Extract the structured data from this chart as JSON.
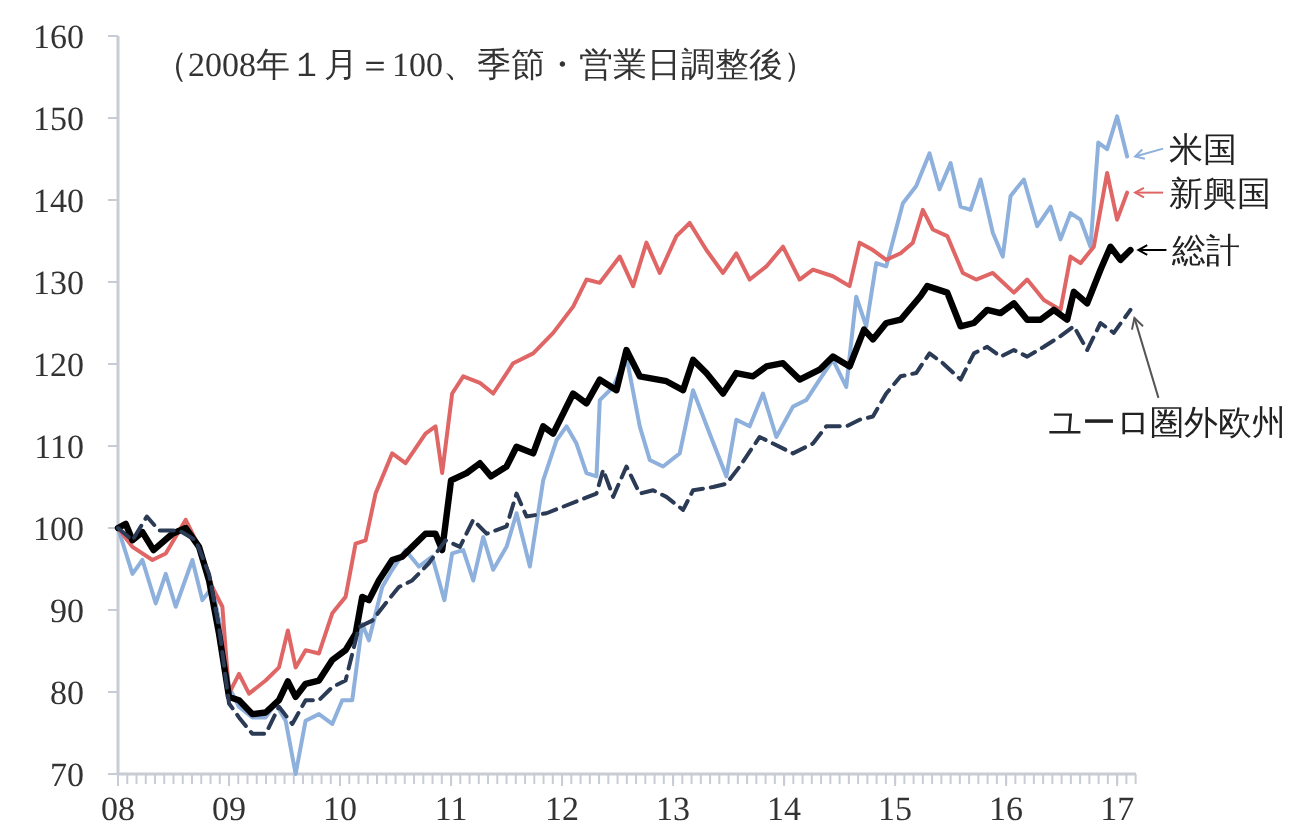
{
  "chart_data": {
    "type": "line",
    "annotations": [
      "（2008年１月＝100、季節・営業日調整後）"
    ],
    "xlim": [
      2008,
      2017.17
    ],
    "xticks": [
      {
        "value": 2008,
        "label": "08"
      },
      {
        "value": 2009,
        "label": "09"
      },
      {
        "value": 2010,
        "label": "10"
      },
      {
        "value": 2011,
        "label": "11"
      },
      {
        "value": 2012,
        "label": "12"
      },
      {
        "value": 2013,
        "label": "13"
      },
      {
        "value": 2014,
        "label": "14"
      },
      {
        "value": 2015,
        "label": "15"
      },
      {
        "value": 2016,
        "label": "16"
      },
      {
        "value": 2017,
        "label": "17"
      }
    ],
    "legend": "right",
    "ylim": [
      70,
      160
    ],
    "yticks": [
      70,
      80,
      90,
      100,
      110,
      120,
      130,
      140,
      150,
      160
    ],
    "series": [
      {
        "name": "米国",
        "color": "#8eb0dc",
        "line_style": "solid",
        "x": [
          2008.0,
          2008.13,
          2008.22,
          2008.34,
          2008.43,
          2008.52,
          2008.67,
          2008.76,
          2008.85,
          2008.94,
          2009.0,
          2009.09,
          2009.21,
          2009.33,
          2009.42,
          2009.51,
          2009.6,
          2009.69,
          2009.81,
          2009.93,
          2010.02,
          2010.11,
          2010.2,
          2010.26,
          2010.38,
          2010.47,
          2010.59,
          2010.71,
          2010.83,
          2010.94,
          2011.01,
          2011.11,
          2011.2,
          2011.29,
          2011.38,
          2011.5,
          2011.59,
          2011.71,
          2011.83,
          2011.95,
          2012.04,
          2012.13,
          2012.22,
          2012.31,
          2012.34,
          2012.46,
          2012.58,
          2012.7,
          2012.79,
          2012.91,
          2013.06,
          2013.18,
          2013.33,
          2013.48,
          2013.57,
          2013.69,
          2013.81,
          2013.93,
          2014.08,
          2014.2,
          2014.32,
          2014.44,
          2014.56,
          2014.65,
          2014.74,
          2014.83,
          2014.92,
          2015.07,
          2015.19,
          2015.31,
          2015.4,
          2015.5,
          2015.59,
          2015.68,
          2015.77,
          2015.88,
          2015.97,
          2016.04,
          2016.16,
          2016.28,
          2016.4,
          2016.49,
          2016.58,
          2016.67,
          2016.76,
          2016.83,
          2016.91,
          2017.0,
          2017.09
        ],
        "values": [
          100,
          94.4,
          96.1,
          90.8,
          94.4,
          90.4,
          96.1,
          91.2,
          92.8,
          86.7,
          80.6,
          78.2,
          76.9,
          76.9,
          78.6,
          76.5,
          70,
          76.5,
          77.3,
          76.1,
          79,
          79,
          88.3,
          86.3,
          92.8,
          94.9,
          97.3,
          95.3,
          96.5,
          91.2,
          96.9,
          97.3,
          93.6,
          98.9,
          94.9,
          97.7,
          101.8,
          95.3,
          105.8,
          110.7,
          112.4,
          110.3,
          106.7,
          106.3,
          115.6,
          117.2,
          120.9,
          112.4,
          108.3,
          107.5,
          109.1,
          116.8,
          111.5,
          106.3,
          113.2,
          112.4,
          116.4,
          111.1,
          114.8,
          115.6,
          118.1,
          120.5,
          117.2,
          128.2,
          124.6,
          132.3,
          131.9,
          139.6,
          141.7,
          145.7,
          141.3,
          144.5,
          139.2,
          138.8,
          142.5,
          136,
          133.1,
          140.5,
          142.5,
          136.8,
          139.2,
          135.2,
          138.4,
          137.6,
          134.3,
          147,
          146.2,
          150.2,
          145.3
        ]
      },
      {
        "name": "新興国",
        "color": "#e06666",
        "line_style": "solid",
        "x": [
          2008.0,
          2008.13,
          2008.31,
          2008.43,
          2008.61,
          2008.73,
          2008.85,
          2008.94,
          2009.0,
          2009.09,
          2009.18,
          2009.33,
          2009.45,
          2009.53,
          2009.6,
          2009.69,
          2009.81,
          2009.93,
          2010.05,
          2010.14,
          2010.23,
          2010.32,
          2010.47,
          2010.59,
          2010.77,
          2010.86,
          2010.92,
          2011.01,
          2011.11,
          2011.26,
          2011.38,
          2011.56,
          2011.74,
          2011.92,
          2012.1,
          2012.22,
          2012.34,
          2012.52,
          2012.64,
          2012.76,
          2012.88,
          2013.03,
          2013.15,
          2013.3,
          2013.45,
          2013.57,
          2013.69,
          2013.84,
          2013.99,
          2014.14,
          2014.26,
          2014.44,
          2014.59,
          2014.68,
          2014.8,
          2014.92,
          2015.05,
          2015.16,
          2015.25,
          2015.34,
          2015.47,
          2015.61,
          2015.73,
          2015.88,
          2016.07,
          2016.19,
          2016.34,
          2016.49,
          2016.58,
          2016.67,
          2016.79,
          2016.91,
          2017.0,
          2017.09
        ],
        "values": [
          100,
          97.7,
          96.1,
          96.9,
          101,
          97.7,
          92.8,
          90.4,
          79.8,
          82.2,
          79.8,
          81.4,
          83,
          87.5,
          83,
          85.1,
          84.7,
          89.6,
          91.6,
          98.1,
          98.5,
          104.2,
          109.1,
          107.9,
          111.5,
          112.4,
          106.7,
          116.4,
          118.5,
          117.7,
          116.4,
          120.1,
          121.3,
          123.8,
          127,
          130.3,
          129.9,
          133.1,
          129.5,
          134.8,
          131.1,
          135.6,
          137.2,
          133.9,
          131.1,
          133.5,
          130.3,
          131.9,
          134.3,
          130.3,
          131.5,
          130.7,
          129.5,
          134.8,
          133.9,
          132.7,
          133.5,
          134.8,
          138.8,
          136.4,
          135.6,
          131.1,
          130.3,
          131.1,
          128.7,
          130.3,
          127.8,
          126.6,
          133.1,
          132.3,
          134.3,
          143.3,
          137.6,
          140.9
        ]
      },
      {
        "name": "総計",
        "color": "#000000",
        "line_style": "solid",
        "x": [
          2008.0,
          2008.07,
          2008.13,
          2008.22,
          2008.32,
          2008.49,
          2008.61,
          2008.73,
          2008.82,
          2008.91,
          2009.0,
          2009.09,
          2009.21,
          2009.33,
          2009.45,
          2009.53,
          2009.6,
          2009.69,
          2009.81,
          2009.93,
          2010.05,
          2010.14,
          2010.2,
          2010.26,
          2010.35,
          2010.47,
          2010.56,
          2010.65,
          2010.77,
          2010.86,
          2010.92,
          2011.0,
          2011.14,
          2011.26,
          2011.36,
          2011.5,
          2011.59,
          2011.74,
          2011.83,
          2011.92,
          2012.1,
          2012.22,
          2012.34,
          2012.49,
          2012.58,
          2012.7,
          2012.94,
          2013.09,
          2013.18,
          2013.3,
          2013.45,
          2013.57,
          2013.72,
          2013.84,
          2013.99,
          2014.14,
          2014.32,
          2014.44,
          2014.59,
          2014.72,
          2014.8,
          2014.92,
          2015.05,
          2015.23,
          2015.29,
          2015.47,
          2015.59,
          2015.71,
          2015.83,
          2015.95,
          2016.07,
          2016.19,
          2016.31,
          2016.43,
          2016.55,
          2016.61,
          2016.73,
          2016.85,
          2016.94,
          2017.03,
          2017.12
        ],
        "values": [
          100,
          100.5,
          98.5,
          99.5,
          97.3,
          99.3,
          100,
          97.7,
          93.6,
          87.1,
          79.4,
          79,
          77.3,
          77.5,
          79,
          81.3,
          79.4,
          81,
          81.4,
          83.9,
          85.1,
          87.1,
          91.6,
          91.2,
          93.6,
          96.1,
          96.5,
          97.7,
          99.3,
          99.3,
          97.3,
          105.8,
          106.7,
          107.9,
          106.3,
          107.5,
          109.9,
          109.1,
          112.4,
          111.5,
          116.4,
          115.2,
          118.1,
          116.8,
          121.7,
          118.5,
          117.9,
          116.8,
          120.5,
          118.9,
          116.4,
          118.9,
          118.5,
          119.7,
          120.1,
          118.1,
          119.3,
          120.9,
          119.7,
          124.2,
          123,
          125,
          125.4,
          128.3,
          129.5,
          128.7,
          124.6,
          125,
          126.6,
          126.2,
          127.4,
          125.4,
          125.4,
          126.6,
          125.4,
          128.8,
          127.4,
          131.5,
          134.3,
          132.7,
          133.9
        ]
      },
      {
        "name": "ユーロ圏外欧州",
        "color": "#2b3a55",
        "line_style": "dashed",
        "x": [
          2008.0,
          2008.13,
          2008.26,
          2008.37,
          2008.55,
          2008.7,
          2008.82,
          2008.91,
          2009.0,
          2009.09,
          2009.21,
          2009.33,
          2009.45,
          2009.57,
          2009.69,
          2009.81,
          2009.93,
          2010.05,
          2010.17,
          2010.29,
          2010.41,
          2010.53,
          2010.65,
          2010.8,
          2010.95,
          2011.08,
          2011.2,
          2011.32,
          2011.5,
          2011.59,
          2011.68,
          2011.86,
          2012.01,
          2012.16,
          2012.31,
          2012.37,
          2012.46,
          2012.58,
          2012.7,
          2012.82,
          2012.94,
          2013.09,
          2013.18,
          2013.36,
          2013.48,
          2013.6,
          2013.78,
          2013.9,
          2014.08,
          2014.26,
          2014.38,
          2014.56,
          2014.68,
          2014.8,
          2014.92,
          2015.05,
          2015.19,
          2015.31,
          2015.43,
          2015.59,
          2015.71,
          2015.83,
          2015.95,
          2016.07,
          2016.19,
          2016.34,
          2016.49,
          2016.61,
          2016.73,
          2016.85,
          2016.97,
          2017.12
        ],
        "values": [
          100,
          98.5,
          101.4,
          99.7,
          99.7,
          98.5,
          94.4,
          87.9,
          78.6,
          76.9,
          74.9,
          74.9,
          78.2,
          76.1,
          79,
          79,
          80.6,
          81.4,
          87.9,
          88.7,
          90.8,
          92.8,
          93.6,
          95.7,
          98.5,
          97.7,
          101,
          99.3,
          100.2,
          104.2,
          101.4,
          101.8,
          102.6,
          103.4,
          104.2,
          107.1,
          103.8,
          107.5,
          104.2,
          104.6,
          103.8,
          102.2,
          104.6,
          105,
          105.4,
          107.5,
          111.1,
          110.3,
          109.1,
          110.3,
          112.4,
          112.4,
          113.2,
          113.6,
          116.4,
          118.5,
          118.9,
          121.3,
          120.1,
          118.1,
          121.3,
          122.1,
          120.9,
          121.7,
          120.9,
          122.1,
          123.4,
          124.6,
          121.7,
          125,
          123.8,
          126.6
        ]
      }
    ]
  }
}
